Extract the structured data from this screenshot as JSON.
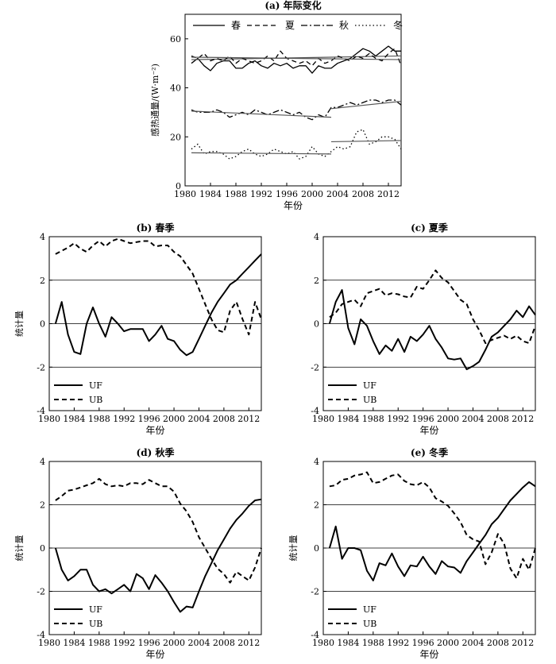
{
  "chart_data": [
    {
      "id": "a",
      "type": "line",
      "title": "(a) 年际变化",
      "xlabel": "年份",
      "ylabel": "感热通量/(W·m⁻²)",
      "xlim": [
        1980,
        2014
      ],
      "ylim": [
        0,
        70
      ],
      "xticks": [
        1980,
        1984,
        1988,
        1992,
        1996,
        2000,
        2004,
        2008,
        2012
      ],
      "yticks": [
        0,
        20,
        40,
        60
      ],
      "grid": false,
      "legend_position": "top",
      "x": [
        1981,
        1982,
        1983,
        1984,
        1985,
        1986,
        1987,
        1988,
        1989,
        1990,
        1991,
        1992,
        1993,
        1994,
        1995,
        1996,
        1997,
        1998,
        1999,
        2000,
        2001,
        2002,
        2003,
        2004,
        2005,
        2006,
        2007,
        2008,
        2009,
        2010,
        2011,
        2012,
        2013,
        2014
      ],
      "series": [
        {
          "name": "春",
          "style": "solid",
          "values": [
            50,
            52,
            49,
            47,
            50,
            51,
            51,
            48,
            48,
            50,
            51,
            49,
            48,
            50,
            49,
            50,
            48,
            49,
            49,
            46,
            49,
            48,
            48,
            50,
            51,
            52,
            54,
            56,
            55,
            53,
            55,
            57,
            55,
            55
          ],
          "trend": [
            {
              "x": [
                1981,
                2014
              ],
              "y": [
                51.5,
                53.0
              ]
            }
          ]
        },
        {
          "name": "夏",
          "style": "dashed",
          "values": [
            53,
            52,
            54,
            51,
            52,
            51,
            53,
            50,
            52,
            51,
            50,
            51,
            53,
            51,
            55,
            52,
            51,
            50,
            51,
            49,
            52,
            50,
            51,
            53,
            52,
            51,
            53,
            52,
            54,
            52,
            51,
            54,
            56,
            49
          ],
          "trend": [
            {
              "x": [
                1981,
                2014
              ],
              "y": [
                52.5,
                51.5
              ]
            }
          ]
        },
        {
          "name": "秋",
          "style": "dashdot",
          "values": [
            31,
            30,
            30,
            30,
            31,
            30,
            28,
            29,
            30,
            29,
            31,
            30,
            29,
            30,
            31,
            30,
            29,
            30,
            28,
            27,
            29,
            28,
            32,
            32,
            33,
            34,
            33,
            34,
            35,
            35,
            34,
            35,
            35,
            33
          ],
          "trend": [
            {
              "x": [
                1981,
                2003
              ],
              "y": [
                30.5,
                28.0
              ]
            },
            {
              "x": [
                2003,
                2014
              ],
              "y": [
                31.5,
                34.5
              ]
            }
          ]
        },
        {
          "name": "冬",
          "style": "dotted",
          "values": [
            15,
            17,
            13,
            14,
            14,
            13,
            11,
            12,
            14,
            15,
            13,
            12,
            13,
            15,
            14,
            13,
            14,
            11,
            12,
            16,
            13,
            12,
            14,
            16,
            15,
            16,
            22,
            23,
            17,
            18,
            20,
            20,
            19,
            15
          ],
          "trend": [
            {
              "x": [
                1981,
                2003
              ],
              "y": [
                13.5,
                13.0
              ]
            },
            {
              "x": [
                2003,
                2014
              ],
              "y": [
                18.0,
                18.5
              ]
            }
          ]
        }
      ]
    },
    {
      "id": "b",
      "type": "line",
      "title": "(b) 春季",
      "xlabel": "年份",
      "ylabel": "统计量",
      "xlim": [
        1980,
        2014
      ],
      "ylim": [
        -4,
        4
      ],
      "xticks": [
        1980,
        1984,
        1988,
        1992,
        1996,
        2000,
        2004,
        2008,
        2012
      ],
      "yticks": [
        -4,
        -2,
        0,
        2,
        4
      ],
      "hlines": [
        -2,
        0,
        2
      ],
      "legend_position": "bottom-left",
      "x": [
        1981,
        1982,
        1983,
        1984,
        1985,
        1986,
        1987,
        1988,
        1989,
        1990,
        1991,
        1992,
        1993,
        1994,
        1995,
        1996,
        1997,
        1998,
        1999,
        2000,
        2001,
        2002,
        2003,
        2004,
        2005,
        2006,
        2007,
        2008,
        2009,
        2010,
        2011,
        2012,
        2013,
        2014
      ],
      "series": [
        {
          "name": "UF",
          "style": "solid",
          "values": [
            0,
            1.0,
            -0.5,
            -1.3,
            -1.4,
            0,
            0.75,
            0,
            -0.6,
            0.3,
            0,
            -0.35,
            -0.25,
            -0.25,
            -0.25,
            -0.8,
            -0.5,
            -0.1,
            -0.7,
            -0.8,
            -1.2,
            -1.45,
            -1.3,
            -0.7,
            -0.1,
            0.5,
            1.0,
            1.4,
            1.8,
            2.0,
            2.3,
            2.6,
            2.9,
            3.2
          ]
        },
        {
          "name": "UB",
          "style": "dashed",
          "values": [
            3.2,
            3.35,
            3.5,
            3.7,
            3.45,
            3.3,
            3.6,
            3.8,
            3.55,
            3.8,
            3.9,
            3.8,
            3.7,
            3.75,
            3.8,
            3.8,
            3.55,
            3.6,
            3.6,
            3.3,
            3.1,
            2.7,
            2.3,
            1.6,
            0.9,
            0.2,
            -0.3,
            -0.4,
            0.6,
            1.0,
            0.2,
            -0.5,
            1.0,
            0.2
          ]
        }
      ]
    },
    {
      "id": "c",
      "type": "line",
      "title": "(c) 夏季",
      "xlabel": "年份",
      "ylabel": "",
      "xlim": [
        1980,
        2014
      ],
      "ylim": [
        -4,
        4
      ],
      "xticks": [
        1980,
        1984,
        1988,
        1992,
        1996,
        2000,
        2004,
        2008,
        2012
      ],
      "yticks": [
        -4,
        -2,
        0,
        2,
        4
      ],
      "hlines": [
        -2,
        0,
        2
      ],
      "legend_position": "bottom-left",
      "x": [
        1981,
        1982,
        1983,
        1984,
        1985,
        1986,
        1987,
        1988,
        1989,
        1990,
        1991,
        1992,
        1993,
        1994,
        1995,
        1996,
        1997,
        1998,
        1999,
        2000,
        2001,
        2002,
        2003,
        2004,
        2005,
        2006,
        2007,
        2008,
        2009,
        2010,
        2011,
        2012,
        2013,
        2014
      ],
      "series": [
        {
          "name": "UF",
          "style": "solid",
          "values": [
            0,
            1.0,
            1.55,
            -0.2,
            -0.95,
            0.2,
            -0.1,
            -0.8,
            -1.4,
            -1.0,
            -1.25,
            -0.7,
            -1.3,
            -0.6,
            -0.8,
            -0.5,
            -0.1,
            -0.7,
            -1.1,
            -1.6,
            -1.65,
            -1.6,
            -2.1,
            -1.95,
            -1.75,
            -1.2,
            -0.6,
            -0.4,
            -0.1,
            0.2,
            0.6,
            0.3,
            0.8,
            0.4
          ]
        },
        {
          "name": "UB",
          "style": "dashed",
          "values": [
            0.3,
            0.5,
            0.9,
            1.0,
            1.1,
            0.8,
            1.4,
            1.5,
            1.6,
            1.3,
            1.4,
            1.35,
            1.25,
            1.2,
            1.7,
            1.6,
            2.0,
            2.45,
            2.1,
            1.9,
            1.5,
            1.1,
            0.9,
            0.2,
            -0.3,
            -0.9,
            -0.75,
            -0.65,
            -0.55,
            -0.7,
            -0.55,
            -0.8,
            -0.9,
            -0.1
          ]
        }
      ]
    },
    {
      "id": "d",
      "type": "line",
      "title": "(d) 秋季",
      "xlabel": "年份",
      "ylabel": "统计量",
      "xlim": [
        1980,
        2014
      ],
      "ylim": [
        -4,
        4
      ],
      "xticks": [
        1980,
        1984,
        1988,
        1992,
        1996,
        2000,
        2004,
        2008,
        2012
      ],
      "yticks": [
        -4,
        -2,
        0,
        2,
        4
      ],
      "hlines": [
        -2,
        0,
        2
      ],
      "legend_position": "bottom-left",
      "x": [
        1981,
        1982,
        1983,
        1984,
        1985,
        1986,
        1987,
        1988,
        1989,
        1990,
        1991,
        1992,
        1993,
        1994,
        1995,
        1996,
        1997,
        1998,
        1999,
        2000,
        2001,
        2002,
        2003,
        2004,
        2005,
        2006,
        2007,
        2008,
        2009,
        2010,
        2011,
        2012,
        2013,
        2014
      ],
      "series": [
        {
          "name": "UF",
          "style": "solid",
          "values": [
            0,
            -1.0,
            -1.5,
            -1.3,
            -1.0,
            -1.0,
            -1.7,
            -2.0,
            -1.9,
            -2.1,
            -1.9,
            -1.7,
            -2.0,
            -1.2,
            -1.4,
            -1.9,
            -1.25,
            -1.6,
            -2.0,
            -2.5,
            -2.95,
            -2.7,
            -2.75,
            -2.0,
            -1.3,
            -0.7,
            -0.1,
            0.4,
            0.9,
            1.3,
            1.6,
            1.95,
            2.2,
            2.25
          ]
        },
        {
          "name": "UB",
          "style": "dashed",
          "values": [
            2.2,
            2.4,
            2.65,
            2.7,
            2.8,
            2.9,
            3.0,
            3.2,
            2.95,
            2.85,
            2.9,
            2.85,
            3.0,
            3.0,
            2.95,
            3.15,
            3.0,
            2.85,
            2.85,
            2.6,
            2.05,
            1.7,
            1.2,
            0.5,
            0.0,
            -0.5,
            -0.95,
            -1.2,
            -1.6,
            -1.1,
            -1.3,
            -1.5,
            -0.9,
            0.0
          ]
        }
      ]
    },
    {
      "id": "e",
      "type": "line",
      "title": "(e) 冬季",
      "xlabel": "年份",
      "ylabel": "统计量",
      "xlim": [
        1980,
        2014
      ],
      "ylim": [
        -4,
        4
      ],
      "xticks": [
        1980,
        1984,
        1988,
        1992,
        1996,
        2000,
        2004,
        2008,
        2012
      ],
      "yticks": [
        -4,
        -2,
        0,
        2,
        4
      ],
      "hlines": [
        -2,
        0,
        2
      ],
      "legend_position": "bottom-left",
      "x": [
        1981,
        1982,
        1983,
        1984,
        1985,
        1986,
        1987,
        1988,
        1989,
        1990,
        1991,
        1992,
        1993,
        1994,
        1995,
        1996,
        1997,
        1998,
        1999,
        2000,
        2001,
        2002,
        2003,
        2004,
        2005,
        2006,
        2007,
        2008,
        2009,
        2010,
        2011,
        2012,
        2013,
        2014
      ],
      "series": [
        {
          "name": "UF",
          "style": "solid",
          "values": [
            0,
            1.0,
            -0.5,
            0,
            0,
            -0.1,
            -1.05,
            -1.5,
            -0.7,
            -0.8,
            -0.25,
            -0.85,
            -1.3,
            -0.8,
            -0.85,
            -0.4,
            -0.85,
            -1.2,
            -0.6,
            -0.85,
            -0.9,
            -1.15,
            -0.6,
            -0.2,
            0.2,
            0.6,
            1.1,
            1.4,
            1.8,
            2.2,
            2.5,
            2.8,
            3.05,
            2.85
          ]
        },
        {
          "name": "UB",
          "style": "dashed",
          "values": [
            2.85,
            2.9,
            3.15,
            3.2,
            3.35,
            3.4,
            3.5,
            3.0,
            3.05,
            3.2,
            3.35,
            3.4,
            3.1,
            2.95,
            2.9,
            3.05,
            2.8,
            2.3,
            2.15,
            1.95,
            1.6,
            1.2,
            0.6,
            0.4,
            0.3,
            -0.75,
            -0.2,
            0.65,
            0.2,
            -0.95,
            -1.4,
            -0.5,
            -1.0,
            0.0
          ]
        }
      ]
    }
  ]
}
